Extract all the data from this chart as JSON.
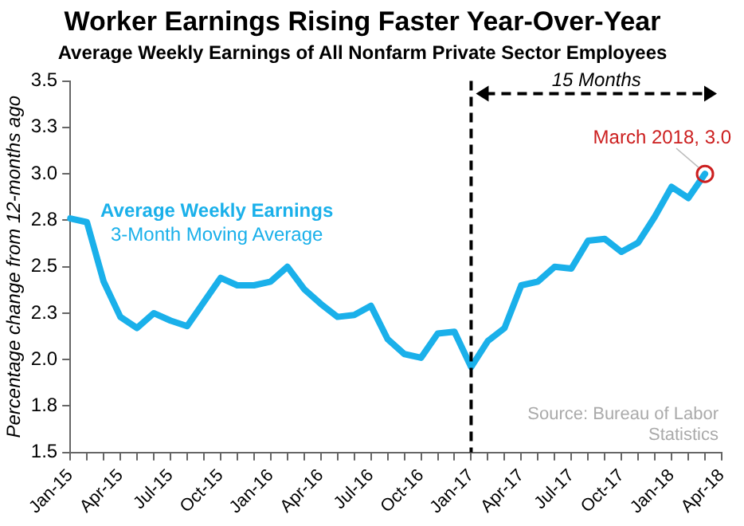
{
  "chart_data": {
    "type": "line",
    "title": "Worker Earnings Rising Faster Year-Over-Year",
    "subtitle": "Average Weekly Earnings of All Nonfarm Private Sector Employees",
    "ylabel": "Percentage change from 12-months ago",
    "categories": [
      "Jan-15",
      null,
      null,
      "Apr-15",
      null,
      null,
      "Jul-15",
      null,
      null,
      "Oct-15",
      null,
      null,
      "Jan-16",
      null,
      null,
      "Apr-16",
      null,
      null,
      "Jul-16",
      null,
      null,
      "Oct-16",
      null,
      null,
      "Jan-17",
      null,
      null,
      "Apr-17",
      null,
      null,
      "Jul-17",
      null,
      null,
      "Oct-17",
      null,
      null,
      "Jan-18",
      null,
      null,
      "Apr-18"
    ],
    "series": [
      {
        "name": "Average Weekly Earnings",
        "color": "#1ab0ea",
        "values": [
          2.76,
          2.74,
          2.42,
          2.23,
          2.17,
          2.25,
          2.21,
          2.18,
          2.31,
          2.44,
          2.4,
          2.4,
          2.42,
          2.5,
          2.38,
          2.3,
          2.23,
          2.24,
          2.29,
          2.11,
          2.03,
          2.01,
          2.14,
          2.15,
          1.96,
          2.1,
          2.17,
          2.4,
          2.42,
          2.5,
          2.49,
          2.64,
          2.65,
          2.58,
          2.63,
          2.77,
          2.93,
          2.87,
          3.0,
          null
        ]
      }
    ],
    "ylim": [
      1.5,
      3.5
    ],
    "yticks": [
      1.5,
      {
        "value": 1.75,
        "label": "1.8"
      },
      {
        "value": 2,
        "label": "2.0"
      },
      {
        "value": 2.25,
        "label": "2.3"
      },
      2.5,
      {
        "value": 2.75,
        "label": "2.8"
      },
      {
        "value": 3,
        "label": "3.0"
      },
      {
        "value": 3.25,
        "label": "3.3"
      },
      3.5
    ],
    "ref_lines": [
      {
        "axis": "x",
        "value": "Jan-17",
        "label": null,
        "color": "#000000",
        "line_style": "dashed"
      }
    ],
    "annotations": [
      "15 Months",
      "March 2018, 3.0",
      "3-Month Moving Average",
      "Source: Bureau of Labor Statistics"
    ],
    "grid": false,
    "legend": false,
    "marker": "none",
    "line_style": "solid"
  }
}
